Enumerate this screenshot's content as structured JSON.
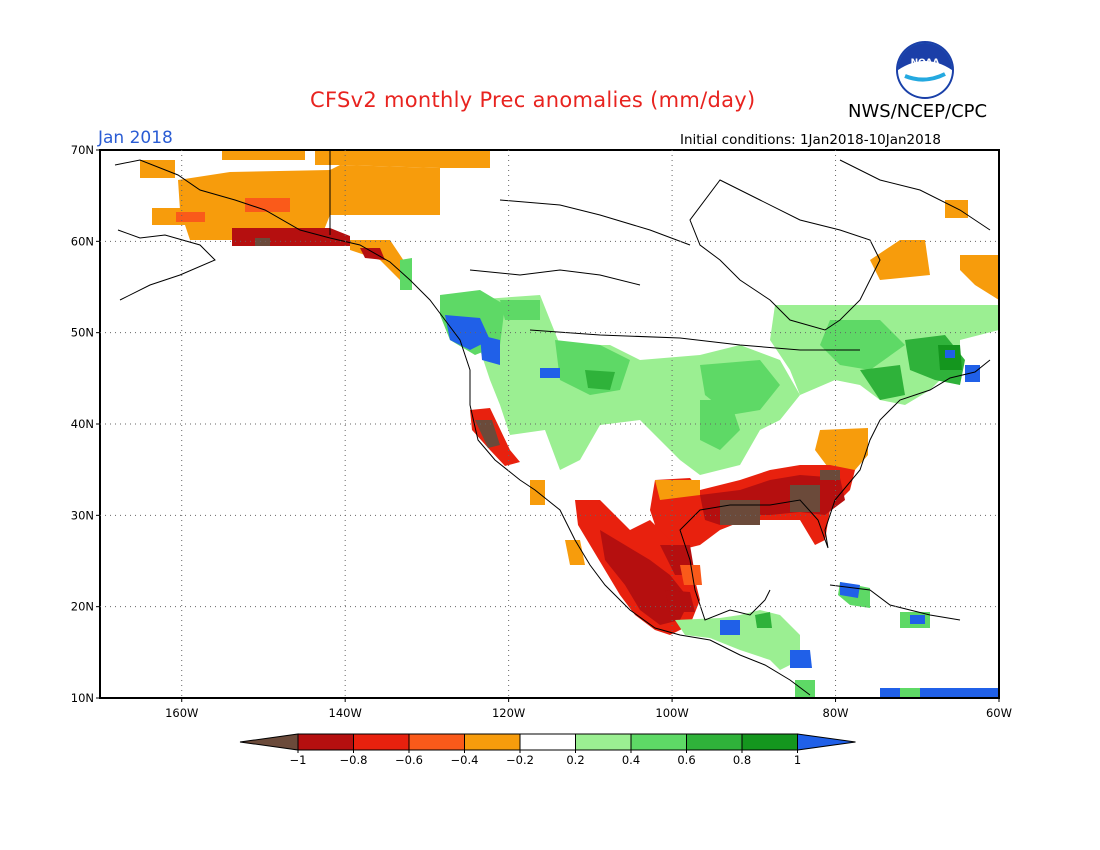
{
  "header": {
    "title": "CFSv2 monthly Prec anomalies (mm/day)",
    "agency": "NWS/NCEP/CPC",
    "month": "Jan 2018",
    "initial_conditions": "Initial conditions: 1Jan2018-10Jan2018",
    "logo_text": "NOAA"
  },
  "map": {
    "lat_range": [
      10,
      70
    ],
    "lon_range": [
      -170,
      -60
    ],
    "lat_ticks": [
      "10N",
      "20N",
      "30N",
      "40N",
      "50N",
      "60N",
      "70N"
    ],
    "lon_ticks": [
      "160W",
      "140W",
      "120W",
      "100W",
      "80W",
      "60W"
    ],
    "grid": "dotted"
  },
  "colorbar": {
    "labels": [
      "-1",
      "-0.8",
      "-0.6",
      "-0.4",
      "-0.2",
      "0.2",
      "0.4",
      "0.6",
      "0.8",
      "1"
    ],
    "colors": [
      "#6b4a3a",
      "#b50f0f",
      "#e8210e",
      "#fa5a1a",
      "#f79c0c",
      "#ffffff",
      "#9bef92",
      "#5ed966",
      "#2fb23a",
      "#14961e",
      "#2060e8"
    ]
  },
  "anomaly_regions": [
    {
      "name": "alaska-north",
      "color": "#f79c0c"
    },
    {
      "name": "canada-east",
      "color": "#9bef92"
    },
    {
      "name": "ohio-valley",
      "color": "#9bef92"
    },
    {
      "name": "southeast-us",
      "color": "#e8210e"
    },
    {
      "name": "gulf-coast",
      "color": "#b50f0f"
    },
    {
      "name": "mexico-west",
      "color": "#b50f0f"
    },
    {
      "name": "pacific-northwest",
      "color": "#5ed966"
    },
    {
      "name": "california",
      "color": "#e8210e"
    }
  ]
}
